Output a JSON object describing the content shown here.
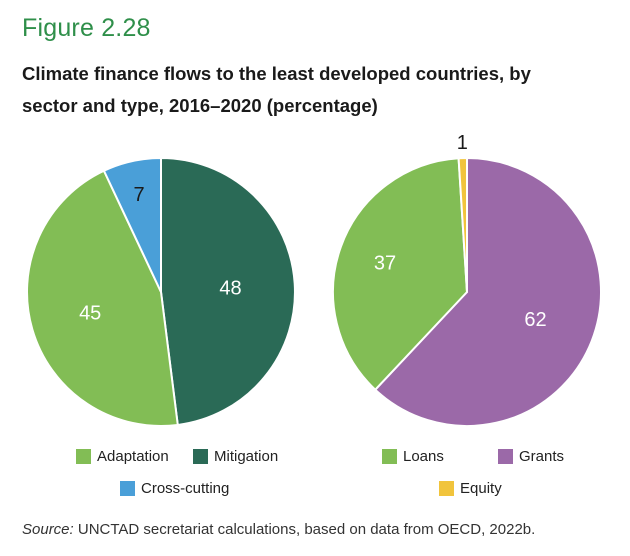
{
  "figure_label": "Figure 2.28",
  "title_line1": "Climate finance flows to the least developed countries, by",
  "title_line2": "sector and type, 2016–2020 (percentage)",
  "chart_data": [
    {
      "type": "pie",
      "series": [
        {
          "name": "Mitigation",
          "value": 48,
          "color": "#2a6a56"
        },
        {
          "name": "Adaptation",
          "value": 45,
          "color": "#82bd55"
        },
        {
          "name": "Cross-cutting",
          "value": 7,
          "color": "#4a9fd8"
        }
      ],
      "legend": [
        "Adaptation",
        "Mitigation",
        "Cross-cutting"
      ]
    },
    {
      "type": "pie",
      "series": [
        {
          "name": "Grants",
          "value": 62,
          "color": "#9b69a8"
        },
        {
          "name": "Loans",
          "value": 37,
          "color": "#82bd55"
        },
        {
          "name": "Equity",
          "value": 1,
          "color": "#f1c43c"
        }
      ],
      "legend": [
        "Loans",
        "Grants",
        "Equity"
      ]
    }
  ],
  "source_label": "Source:",
  "source_text": " UNCTAD secretariat calculations, based on data from OECD, 2022b."
}
